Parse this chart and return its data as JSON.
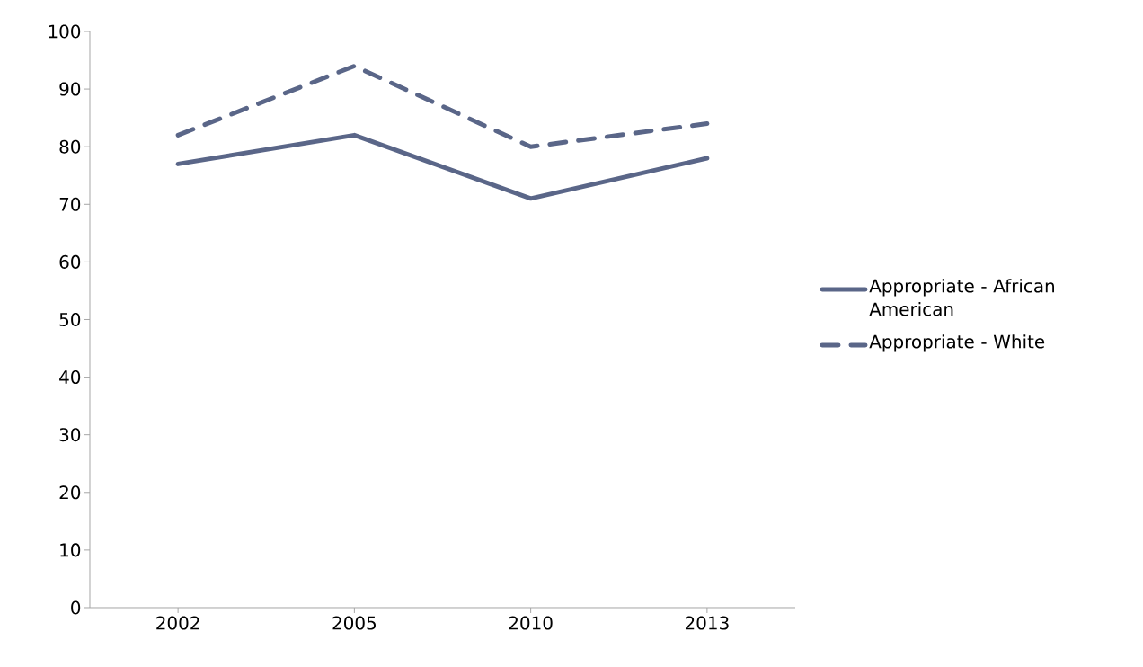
{
  "chart_data": {
    "type": "line",
    "categories": [
      "2002",
      "2005",
      "2010",
      "2013"
    ],
    "series": [
      {
        "name": "Appropriate - African American",
        "color": "#5a6688",
        "line_style": "solid",
        "values": [
          77,
          82,
          71,
          78
        ]
      },
      {
        "name": "Appropriate - White",
        "color": "#5a6688",
        "line_style": "dashed",
        "values": [
          82,
          94,
          80,
          84
        ]
      }
    ],
    "ylim": [
      0,
      100
    ],
    "yticks": [
      0,
      10,
      20,
      30,
      40,
      50,
      60,
      70,
      80,
      90,
      100
    ],
    "grid": false,
    "legend": "right",
    "marker": "none"
  }
}
